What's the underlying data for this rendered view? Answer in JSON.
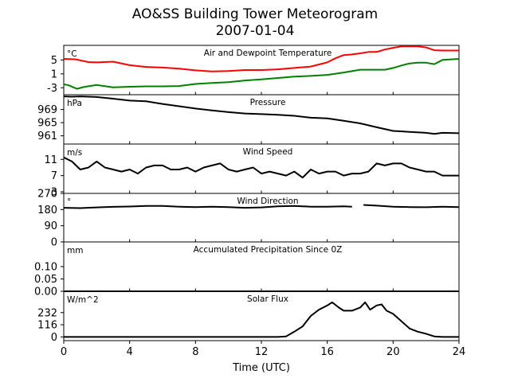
{
  "title": "AO&SS Building Tower Meteorogram",
  "subtitle": "2007-01-04",
  "xlabel": "Time (UTC)",
  "chart_data": [
    {
      "type": "line",
      "title": "Air and Dewpoint Temperature",
      "unit": "°C",
      "ylim": [
        -5,
        9.2
      ],
      "yticks": [
        -3,
        1,
        5
      ],
      "xlim": [
        0,
        24
      ],
      "series": [
        {
          "color": "#ff0000",
          "x": [
            0,
            0.7,
            1,
            1.5,
            2,
            3,
            4,
            5,
            6,
            7,
            8,
            9,
            10,
            11,
            12,
            13,
            14,
            15,
            16,
            16.5,
            17,
            17.5,
            18,
            18.5,
            19,
            19.5,
            20,
            20.5,
            21,
            21.5,
            22,
            22.5,
            23,
            24
          ],
          "y": [
            5.3,
            5.2,
            4.9,
            4.4,
            4.3,
            4.5,
            3.5,
            3.0,
            2.8,
            2.5,
            2.0,
            1.7,
            1.8,
            2.1,
            2.1,
            2.3,
            2.7,
            3.1,
            4.3,
            5.5,
            6.4,
            6.6,
            6.9,
            7.3,
            7.3,
            8.0,
            8.5,
            8.9,
            8.9,
            8.9,
            8.6,
            7.8,
            7.7,
            7.7
          ]
        },
        {
          "color": "#008000",
          "x": [
            0,
            0.3,
            0.8,
            1.2,
            2,
            3,
            4,
            5,
            6,
            7,
            8,
            9,
            10,
            11,
            12,
            13,
            14,
            15,
            16,
            17,
            18,
            19,
            19.5,
            20,
            20.5,
            21,
            21.5,
            22,
            22.5,
            23,
            24
          ],
          "y": [
            -2.0,
            -2.3,
            -3.3,
            -2.8,
            -2.2,
            -2.9,
            -2.7,
            -2.6,
            -2.6,
            -2.5,
            -1.9,
            -1.6,
            -1.4,
            -0.9,
            -0.6,
            -0.2,
            0.2,
            0.4,
            0.7,
            1.4,
            2.2,
            2.2,
            2.2,
            2.7,
            3.4,
            4.0,
            4.2,
            4.2,
            3.8,
            5.0,
            5.3
          ]
        }
      ]
    },
    {
      "type": "line",
      "title": "Pressure",
      "unit": "hPa",
      "ylim": [
        958.5,
        973.5
      ],
      "yticks": [
        961,
        965,
        969
      ],
      "series": [
        {
          "color": "#000000",
          "x": [
            0,
            0.5,
            1,
            2,
            3,
            4,
            5,
            6,
            7,
            8,
            9,
            10,
            11,
            12,
            13,
            14,
            15,
            16,
            17,
            18,
            19,
            20,
            21,
            22,
            22.5,
            23,
            24
          ],
          "y": [
            973.0,
            972.9,
            973.0,
            972.8,
            972.3,
            971.7,
            971.5,
            970.7,
            970.0,
            969.3,
            968.7,
            968.2,
            967.8,
            967.6,
            967.4,
            967.1,
            966.5,
            966.3,
            965.6,
            964.8,
            963.6,
            962.5,
            962.2,
            961.9,
            961.6,
            961.9,
            961.8
          ]
        }
      ]
    },
    {
      "type": "line",
      "title": "Wind Speed",
      "unit": "m/s",
      "ylim": [
        2.6,
        14.8
      ],
      "yticks": [
        3,
        7,
        11
      ],
      "series": [
        {
          "color": "#000000",
          "x": [
            0,
            0.5,
            1,
            1.5,
            2,
            2.5,
            3,
            3.5,
            4,
            4.5,
            5,
            5.5,
            6,
            6.5,
            7,
            7.5,
            8,
            8.5,
            9,
            9.5,
            10,
            10.5,
            11,
            11.5,
            12,
            12.5,
            13,
            13.5,
            14,
            14.5,
            15,
            15.5,
            16,
            16.5,
            17,
            17.5,
            18,
            18.5,
            19,
            19.5,
            20,
            20.5,
            21,
            21.5,
            22,
            22.5,
            23,
            23.5,
            24
          ],
          "y": [
            11.5,
            10.5,
            8.5,
            9,
            10.5,
            9,
            8.5,
            8,
            8.5,
            7.5,
            9,
            9.5,
            9.5,
            8.5,
            8.5,
            9,
            8,
            9,
            9.5,
            10,
            8.5,
            8,
            8.5,
            9,
            7.5,
            8,
            7.5,
            7,
            8,
            6.5,
            8.5,
            7.5,
            8,
            8,
            7,
            7.5,
            7.5,
            8,
            10,
            9.5,
            10,
            10,
            9,
            8.5,
            8,
            8,
            7,
            7,
            7
          ]
        }
      ]
    },
    {
      "type": "line",
      "title": "Wind Direction",
      "unit": "°",
      "ylim": [
        0,
        270
      ],
      "yticks": [
        0,
        90,
        180,
        270
      ],
      "series": [
        {
          "color": "#000000",
          "x": [
            0,
            1,
            2,
            3,
            4,
            5,
            6,
            7,
            8,
            9,
            10,
            11,
            12,
            13,
            14,
            15,
            16,
            17,
            17.5
          ],
          "y": [
            190,
            188,
            192,
            195,
            197,
            200,
            200,
            196,
            194,
            196,
            194,
            190,
            192,
            198,
            200,
            196,
            196,
            198,
            196
          ]
        },
        {
          "color": "#000000",
          "x": [
            18.2,
            19,
            20,
            21,
            22,
            23,
            24
          ],
          "y": [
            206,
            202,
            196,
            194,
            193,
            196,
            194
          ]
        }
      ]
    },
    {
      "type": "line",
      "title": "Accumulated Precipitation Since 0Z",
      "unit": "mm",
      "ylim": [
        0,
        0.2
      ],
      "yticks": [
        0.0,
        0.05,
        0.1
      ],
      "series": [
        {
          "color": "#000000",
          "x": [
            0,
            24
          ],
          "y": [
            0,
            0
          ]
        }
      ]
    },
    {
      "type": "line",
      "title": "Solar Flux",
      "unit": "W/m^2",
      "ylim": [
        -35,
        435
      ],
      "yticks": [
        0,
        116,
        232
      ],
      "series": [
        {
          "color": "#000000",
          "x": [
            0,
            13,
            13.5,
            14,
            14.5,
            15,
            15.5,
            16,
            16.3,
            16.7,
            17,
            17.5,
            18,
            18.3,
            18.6,
            19,
            19.3,
            19.6,
            20,
            20.5,
            21,
            21.5,
            22,
            22.5,
            23,
            24
          ],
          "y": [
            0,
            0,
            5,
            50,
            100,
            200,
            260,
            300,
            330,
            280,
            250,
            250,
            280,
            330,
            260,
            300,
            310,
            250,
            220,
            150,
            80,
            50,
            30,
            5,
            0,
            0
          ]
        }
      ]
    }
  ],
  "xaxis": {
    "ticks": [
      0,
      4,
      8,
      12,
      16,
      20,
      24
    ]
  }
}
